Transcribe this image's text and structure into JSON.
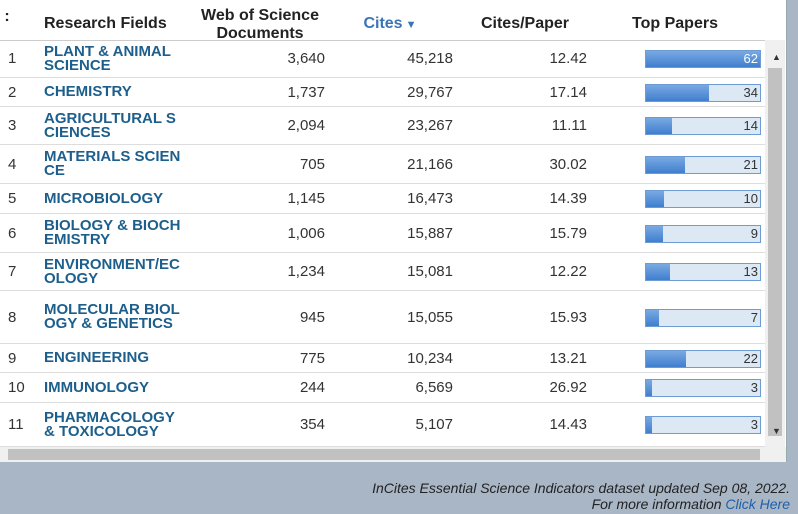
{
  "header": {
    "index": ":",
    "field": "Research Fields",
    "docs": "Web of Science Documents",
    "cites": "Cites",
    "cites_per_paper": "Cites/Paper",
    "top_papers": "Top Papers"
  },
  "table": {
    "rows": [
      [
        "1",
        "PLANT & ANIMAL SCIENCE",
        "3,640",
        "45,218",
        "12.42",
        62
      ],
      [
        "2",
        "CHEMISTRY",
        "1,737",
        "29,767",
        "17.14",
        34
      ],
      [
        "3",
        "AGRICULTURAL SCIENCES",
        "2,094",
        "23,267",
        "11.11",
        14
      ],
      [
        "4",
        "MATERIALS SCIENCE",
        "705",
        "21,166",
        "30.02",
        21
      ],
      [
        "5",
        "MICROBIOLOGY",
        "1,145",
        "16,473",
        "14.39",
        10
      ],
      [
        "6",
        "BIOLOGY & BIOCHEMISTRY",
        "1,006",
        "15,887",
        "15.79",
        9
      ],
      [
        "7",
        "ENVIRONMENT/ECOLOGY",
        "1,234",
        "15,081",
        "12.22",
        13
      ],
      [
        "8",
        "MOLECULAR BIOLOGY & GENETICS",
        "945",
        "15,055",
        "15.93",
        7
      ],
      [
        "9",
        "ENGINEERING",
        "775",
        "10,234",
        "13.21",
        22
      ],
      [
        "10",
        "IMMUNOLOGY",
        "244",
        "6,569",
        "26.92",
        3
      ],
      [
        "11",
        "PHARMACOLOGY & TOXICOLOGY",
        "354",
        "5,107",
        "14.43",
        3
      ]
    ]
  },
  "footer": {
    "line1": "InCites Essential Science Indicators dataset updated Sep 08, 2022.",
    "line2": "For more information",
    "link": "Click Here"
  }
}
